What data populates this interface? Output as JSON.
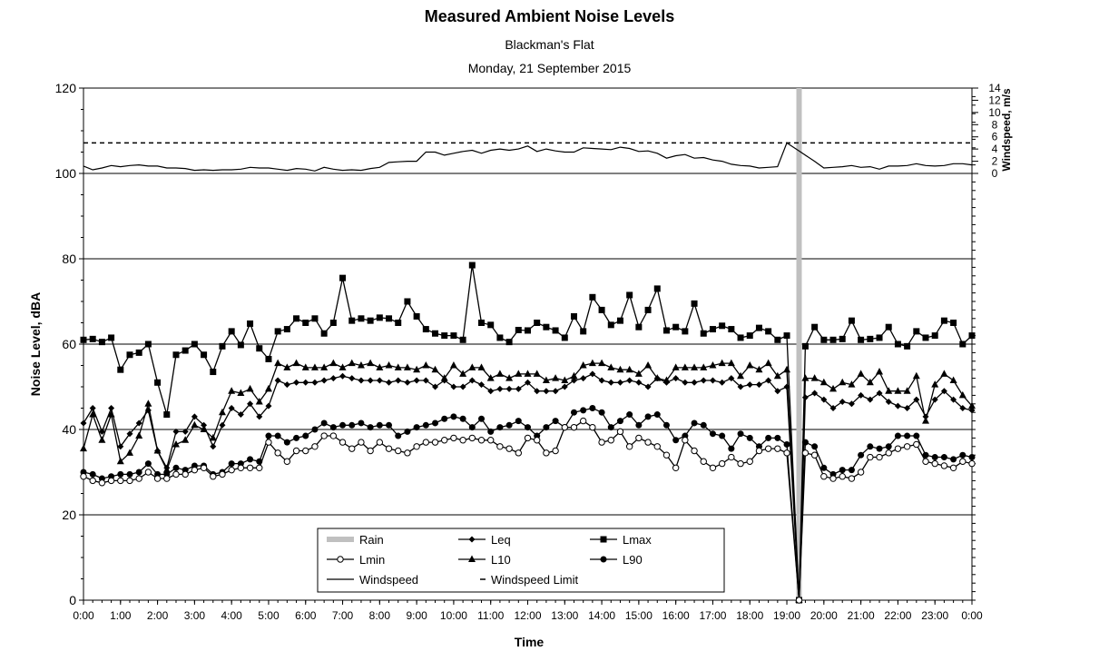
{
  "chart_data": {
    "type": "line",
    "title": "Measured Ambient Noise Levels",
    "subtitle": [
      "Blackman's Flat",
      "Monday, 21 September 2015"
    ],
    "xlabel": "Time",
    "ylabel": "Noise Level, dBA",
    "y2label": "Windspeed, m/s",
    "ylim": [
      0,
      120
    ],
    "y2lim": [
      0,
      14
    ],
    "xlim": [
      0,
      24
    ],
    "grid": true,
    "legend_position": "bottom-center",
    "yticks": [
      "0",
      "20",
      "40",
      "60",
      "80",
      "100",
      "120"
    ],
    "y2ticks": [
      "0",
      "2",
      "4",
      "6",
      "8",
      "10",
      "12",
      "14"
    ],
    "xticks": [
      "0:00",
      "1:00",
      "2:00",
      "3:00",
      "4:00",
      "5:00",
      "6:00",
      "7:00",
      "8:00",
      "9:00",
      "10:00",
      "11:00",
      "12:00",
      "13:00",
      "14:00",
      "15:00",
      "16:00",
      "17:00",
      "18:00",
      "19:00",
      "20:00",
      "21:00",
      "22:00",
      "23:00",
      "0:00"
    ],
    "rain": {
      "name": "Rain",
      "time": 19.33
    },
    "windspeed_limit": {
      "name": "Windspeed Limit",
      "value": 5
    },
    "legend": [
      "Rain",
      "Leq",
      "Lmax",
      "Lmin",
      "L10",
      "L90",
      "Windspeed",
      "Windspeed Limit"
    ],
    "series": [
      {
        "name": "Lmax",
        "marker": "square",
        "x": [
          0,
          0.25,
          0.5,
          0.75,
          1,
          1.25,
          1.5,
          1.75,
          2,
          2.25,
          2.5,
          2.75,
          3,
          3.25,
          3.5,
          3.75,
          4,
          4.25,
          4.5,
          4.75,
          5,
          5.25,
          5.5,
          5.75,
          6,
          6.25,
          6.5,
          6.75,
          7,
          7.25,
          7.5,
          7.75,
          8,
          8.25,
          8.5,
          8.75,
          9,
          9.25,
          9.5,
          9.75,
          10,
          10.25,
          10.5,
          10.75,
          11,
          11.25,
          11.5,
          11.75,
          12,
          12.25,
          12.5,
          12.75,
          13,
          13.25,
          13.5,
          13.75,
          14,
          14.25,
          14.5,
          14.75,
          15,
          15.25,
          15.5,
          15.75,
          16,
          16.25,
          16.5,
          16.75,
          17,
          17.25,
          17.5,
          17.75,
          18,
          18.25,
          18.5,
          18.75,
          19,
          19.33,
          19.5,
          19.75,
          20,
          20.25,
          20.5,
          20.75,
          21,
          21.25,
          21.5,
          21.75,
          22,
          22.25,
          22.5,
          22.75,
          23,
          23.25,
          23.5,
          23.75,
          24
        ],
        "values": [
          61,
          61.2,
          60.5,
          61.5,
          54,
          57.5,
          58,
          60,
          51,
          43.5,
          57.5,
          58.5,
          60,
          57.5,
          53.5,
          59.5,
          63,
          59.8,
          64.8,
          59,
          56.5,
          63,
          63.5,
          66,
          65,
          66,
          62.5,
          65,
          75.5,
          65.5,
          66,
          65.5,
          66.2,
          66,
          65,
          70,
          66.5,
          63.5,
          62.5,
          62,
          62,
          61,
          78.5,
          65,
          64.5,
          61.5,
          60.5,
          63.3,
          63.2,
          65,
          64,
          63.2,
          61.5,
          66.5,
          63,
          71,
          68,
          64.5,
          65.5,
          71.5,
          64,
          68,
          73,
          63.2,
          64,
          63,
          69.5,
          62.5,
          63.5,
          64.3,
          63.5,
          61.5,
          62,
          63.8,
          63,
          61,
          62,
          0,
          59.5,
          64,
          61,
          61,
          61.2,
          65.5,
          61,
          61.2,
          61.5,
          64,
          60,
          59.5,
          63,
          61.5,
          62,
          65.5,
          65,
          60,
          62
        ]
      },
      {
        "name": "L10",
        "marker": "triangle",
        "x": [
          0,
          0.25,
          0.5,
          0.75,
          1,
          1.25,
          1.5,
          1.75,
          2,
          2.25,
          2.5,
          2.75,
          3,
          3.25,
          3.5,
          3.75,
          4,
          4.25,
          4.5,
          4.75,
          5,
          5.25,
          5.5,
          5.75,
          6,
          6.25,
          6.5,
          6.75,
          7,
          7.25,
          7.5,
          7.75,
          8,
          8.25,
          8.5,
          8.75,
          9,
          9.25,
          9.5,
          9.75,
          10,
          10.25,
          10.5,
          10.75,
          11,
          11.25,
          11.5,
          11.75,
          12,
          12.25,
          12.5,
          12.75,
          13,
          13.25,
          13.5,
          13.75,
          14,
          14.25,
          14.5,
          14.75,
          15,
          15.25,
          15.5,
          15.75,
          16,
          16.25,
          16.5,
          16.75,
          17,
          17.25,
          17.5,
          17.75,
          18,
          18.25,
          18.5,
          18.75,
          19,
          19.33,
          19.5,
          19.75,
          20,
          20.25,
          20.5,
          20.75,
          21,
          21.25,
          21.5,
          21.75,
          22,
          22.25,
          22.5,
          22.75,
          23,
          23.25,
          23.5,
          23.75,
          24
        ],
        "values": [
          35.5,
          43.5,
          37.5,
          43.5,
          32.5,
          34.5,
          38.5,
          46,
          35,
          30.5,
          36.5,
          37.5,
          41,
          40,
          38,
          44,
          49,
          48.5,
          49.5,
          46.5,
          49.5,
          55.5,
          54.5,
          55.5,
          54.5,
          54.5,
          54.5,
          55.5,
          54.5,
          55.5,
          55,
          55.5,
          54.5,
          55,
          54.5,
          54.5,
          54,
          55,
          54,
          52,
          55,
          53,
          54.5,
          54.5,
          52,
          53,
          52,
          53,
          53,
          53,
          51.5,
          52,
          51.5,
          52.5,
          55,
          55.5,
          55.5,
          54.5,
          54,
          54,
          53,
          55,
          52,
          51.5,
          54.5,
          54.5,
          54.5,
          54.5,
          55,
          55.5,
          55.5,
          52.5,
          55,
          54,
          55.5,
          52.5,
          54,
          0,
          52,
          52,
          51,
          49.5,
          51,
          50.5,
          53,
          51,
          53.5,
          49,
          49,
          49,
          52.5,
          42,
          50.5,
          53,
          51.5,
          48,
          45.5
        ]
      },
      {
        "name": "Leq",
        "marker": "diamond",
        "x": [
          0,
          0.25,
          0.5,
          0.75,
          1,
          1.25,
          1.5,
          1.75,
          2,
          2.25,
          2.5,
          2.75,
          3,
          3.25,
          3.5,
          3.75,
          4,
          4.25,
          4.5,
          4.75,
          5,
          5.25,
          5.5,
          5.75,
          6,
          6.25,
          6.5,
          6.75,
          7,
          7.25,
          7.5,
          7.75,
          8,
          8.25,
          8.5,
          8.75,
          9,
          9.25,
          9.5,
          9.75,
          10,
          10.25,
          10.5,
          10.75,
          11,
          11.25,
          11.5,
          11.75,
          12,
          12.25,
          12.5,
          12.75,
          13,
          13.25,
          13.5,
          13.75,
          14,
          14.25,
          14.5,
          14.75,
          15,
          15.25,
          15.5,
          15.75,
          16,
          16.25,
          16.5,
          16.75,
          17,
          17.25,
          17.5,
          17.75,
          18,
          18.25,
          18.5,
          18.75,
          19,
          19.33,
          19.5,
          19.75,
          20,
          20.25,
          20.5,
          20.75,
          21,
          21.25,
          21.5,
          21.75,
          22,
          22.25,
          22.5,
          22.75,
          23,
          23.25,
          23.5,
          23.75,
          24
        ],
        "values": [
          41.5,
          45,
          39.5,
          45,
          36,
          39,
          41.5,
          44.5,
          35,
          31,
          39.5,
          39.5,
          43,
          41,
          36,
          41,
          45,
          43.5,
          46,
          43,
          45.5,
          51.5,
          50.5,
          51,
          51,
          51,
          51.5,
          52,
          52.5,
          52,
          51.5,
          51.5,
          51.5,
          51,
          51.5,
          51,
          51.5,
          51.5,
          50,
          51.5,
          50,
          50,
          51.5,
          50.5,
          49,
          49.5,
          49.5,
          49.5,
          51,
          49,
          49,
          49,
          50,
          51.5,
          52,
          53,
          51.5,
          51,
          51,
          51.5,
          51,
          50,
          52,
          51,
          52,
          51,
          51,
          51.5,
          51.5,
          51,
          52,
          50,
          50.5,
          50.5,
          51.5,
          49,
          50,
          0,
          47.5,
          48.5,
          47,
          45,
          46.5,
          46,
          48,
          47,
          48.5,
          46.5,
          45.5,
          45,
          47,
          43,
          47,
          49,
          47,
          45,
          44.5
        ]
      },
      {
        "name": "L90",
        "marker": "circle-filled",
        "x": [
          0,
          0.25,
          0.5,
          0.75,
          1,
          1.25,
          1.5,
          1.75,
          2,
          2.25,
          2.5,
          2.75,
          3,
          3.25,
          3.5,
          3.75,
          4,
          4.25,
          4.5,
          4.75,
          5,
          5.25,
          5.5,
          5.75,
          6,
          6.25,
          6.5,
          6.75,
          7,
          7.25,
          7.5,
          7.75,
          8,
          8.25,
          8.5,
          8.75,
          9,
          9.25,
          9.5,
          9.75,
          10,
          10.25,
          10.5,
          10.75,
          11,
          11.25,
          11.5,
          11.75,
          12,
          12.25,
          12.5,
          12.75,
          13,
          13.25,
          13.5,
          13.75,
          14,
          14.25,
          14.5,
          14.75,
          15,
          15.25,
          15.5,
          15.75,
          16,
          16.25,
          16.5,
          16.75,
          17,
          17.25,
          17.5,
          17.75,
          18,
          18.25,
          18.5,
          18.75,
          19,
          19.33,
          19.5,
          19.75,
          20,
          20.25,
          20.5,
          20.75,
          21,
          21.25,
          21.5,
          21.75,
          22,
          22.25,
          22.5,
          22.75,
          23,
          23.25,
          23.5,
          23.75,
          24
        ],
        "values": [
          30,
          29.5,
          28.5,
          29,
          29.5,
          29.5,
          30,
          32,
          29.5,
          29.5,
          31,
          30.5,
          31.5,
          31.5,
          29.5,
          30,
          32,
          32,
          33,
          32.5,
          38.5,
          38.5,
          37,
          38,
          38.5,
          40,
          41.5,
          40.5,
          41,
          41,
          41.5,
          40.5,
          41,
          41,
          38.5,
          39.5,
          40.5,
          41,
          41.5,
          42.5,
          43,
          42.5,
          40.5,
          42.5,
          39.5,
          40.5,
          41,
          42,
          40.5,
          38.5,
          40.5,
          42,
          40.5,
          44,
          44.5,
          45,
          44,
          40.5,
          42,
          43.5,
          41,
          43,
          43.5,
          41,
          37.5,
          38.5,
          41.5,
          41,
          39,
          38.5,
          35.5,
          39,
          38,
          36,
          38,
          38,
          36.5,
          0,
          37,
          36,
          31,
          29.5,
          30.5,
          30.5,
          34,
          36,
          35.5,
          36,
          38.5,
          38.5,
          38.5,
          34,
          33.5,
          33.5,
          33,
          34,
          33.5
        ]
      },
      {
        "name": "Lmin",
        "marker": "circle-open",
        "x": [
          0,
          0.25,
          0.5,
          0.75,
          1,
          1.25,
          1.5,
          1.75,
          2,
          2.25,
          2.5,
          2.75,
          3,
          3.25,
          3.5,
          3.75,
          4,
          4.25,
          4.5,
          4.75,
          5,
          5.25,
          5.5,
          5.75,
          6,
          6.25,
          6.5,
          6.75,
          7,
          7.25,
          7.5,
          7.75,
          8,
          8.25,
          8.5,
          8.75,
          9,
          9.25,
          9.5,
          9.75,
          10,
          10.25,
          10.5,
          10.75,
          11,
          11.25,
          11.5,
          11.75,
          12,
          12.25,
          12.5,
          12.75,
          13,
          13.25,
          13.5,
          13.75,
          14,
          14.25,
          14.5,
          14.75,
          15,
          15.25,
          15.5,
          15.75,
          16,
          16.25,
          16.5,
          16.75,
          17,
          17.25,
          17.5,
          17.75,
          18,
          18.25,
          18.5,
          18.75,
          19,
          19.33,
          19.5,
          19.75,
          20,
          20.25,
          20.5,
          20.75,
          21,
          21.25,
          21.5,
          21.75,
          22,
          22.25,
          22.5,
          22.75,
          23,
          23.25,
          23.5,
          23.75,
          24
        ],
        "values": [
          29,
          28,
          27.5,
          28,
          28,
          28,
          28.5,
          30,
          28.5,
          28.5,
          29.5,
          29.5,
          30.5,
          31,
          29,
          29.5,
          30.5,
          31,
          31,
          31,
          37,
          34.5,
          32.5,
          35,
          35,
          36,
          38.5,
          38.5,
          37,
          35.5,
          37,
          35,
          37,
          35.5,
          35,
          34.5,
          36,
          37,
          37,
          37.5,
          38,
          37.5,
          38,
          37.5,
          37.5,
          36,
          35.5,
          34.5,
          38,
          37.5,
          34.5,
          35,
          40.5,
          40.5,
          42,
          40.5,
          37,
          37.5,
          39.5,
          36,
          38,
          37,
          36,
          34,
          31,
          37.5,
          35,
          32.5,
          31,
          32,
          33.5,
          32,
          32.5,
          35,
          35.5,
          35.5,
          34.5,
          0,
          34.5,
          34,
          29,
          28.5,
          29,
          28.5,
          30,
          33.5,
          33.5,
          34.5,
          35.5,
          36,
          36.5,
          32.5,
          32,
          31.5,
          31,
          32.5,
          32
        ]
      },
      {
        "name": "Windspeed",
        "axis": "y2",
        "x": [
          0,
          0.25,
          0.5,
          0.75,
          1,
          1.25,
          1.5,
          1.75,
          2,
          2.25,
          2.5,
          2.75,
          3,
          3.25,
          3.5,
          3.75,
          4,
          4.25,
          4.5,
          4.75,
          5,
          5.25,
          5.5,
          5.75,
          6,
          6.25,
          6.5,
          6.75,
          7,
          7.25,
          7.5,
          7.75,
          8,
          8.25,
          8.5,
          8.75,
          9,
          9.25,
          9.5,
          9.75,
          10,
          10.25,
          10.5,
          10.75,
          11,
          11.25,
          11.5,
          11.75,
          12,
          12.25,
          12.5,
          12.75,
          13,
          13.25,
          13.5,
          13.75,
          14,
          14.25,
          14.5,
          14.75,
          15,
          15.25,
          15.5,
          15.75,
          16,
          16.25,
          16.5,
          16.75,
          17,
          17.25,
          17.5,
          17.75,
          18,
          18.25,
          18.5,
          18.75,
          19,
          19.33,
          19.5,
          19.75,
          20,
          20.25,
          20.5,
          20.75,
          21,
          21.25,
          21.5,
          21.75,
          22,
          22.25,
          22.5,
          22.75,
          23,
          23.25,
          23.5,
          23.75,
          24
        ],
        "values": [
          1.2,
          0.6,
          0.9,
          1.3,
          1.1,
          1.3,
          1.4,
          1.2,
          1.2,
          0.9,
          0.9,
          0.8,
          0.5,
          0.6,
          0.5,
          0.6,
          0.6,
          0.7,
          1.0,
          0.9,
          0.9,
          0.7,
          0.5,
          0.8,
          0.7,
          0.4,
          1.0,
          0.7,
          0.5,
          0.6,
          0.5,
          0.8,
          1.0,
          1.8,
          1.9,
          2.0,
          2.0,
          3.5,
          3.5,
          3.0,
          3.3,
          3.6,
          3.8,
          3.3,
          3.8,
          4.0,
          3.8,
          4.0,
          4.5,
          3.6,
          4.0,
          3.7,
          3.5,
          3.5,
          4.2,
          4.1,
          4.0,
          3.9,
          4.3,
          4.1,
          3.6,
          3.7,
          3.3,
          2.5,
          2.9,
          3.1,
          2.5,
          2.6,
          2.2,
          2.0,
          1.5,
          1.3,
          1.2,
          0.9,
          1.0,
          1.1,
          5.0,
          3.7,
          3.0,
          2.0,
          0.9,
          1.0,
          1.1,
          1.3,
          1.0,
          1.1,
          0.7,
          1.2,
          1.2,
          1.3,
          1.6,
          1.3,
          1.2,
          1.3,
          1.6,
          1.6,
          1.4
        ]
      }
    ]
  }
}
